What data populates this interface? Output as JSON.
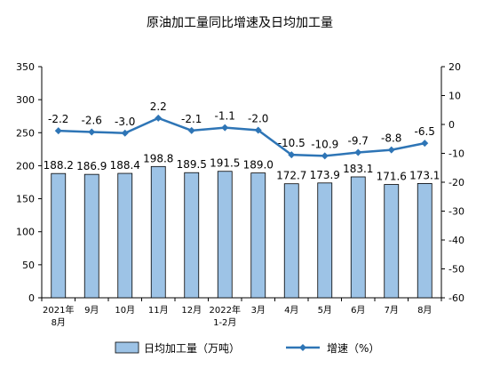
{
  "chart_data": {
    "type": "bar",
    "title": "原油加工量同比增速及日均加工量",
    "categories": [
      [
        "2021年",
        "8月"
      ],
      [
        "9月"
      ],
      [
        "10月"
      ],
      [
        "11月"
      ],
      [
        "12月"
      ],
      [
        "2022年",
        "1-2月"
      ],
      [
        "3月"
      ],
      [
        "4月"
      ],
      [
        "5月"
      ],
      [
        "6月"
      ],
      [
        "7月"
      ],
      [
        "8月"
      ]
    ],
    "series": [
      {
        "name": "日均加工量（万吨）",
        "type": "bar",
        "axis": "left",
        "color": "#9dc3e6",
        "values": [
          188.2,
          186.9,
          188.4,
          198.8,
          189.5,
          191.5,
          189.0,
          172.7,
          173.9,
          183.1,
          171.6,
          173.1
        ],
        "labels": [
          "188.2",
          "186.9",
          "188.4",
          "198.8",
          "189.5",
          "191.5",
          "189.0",
          "172.7",
          "173.9",
          "183.1",
          "171.6",
          "173.1"
        ]
      },
      {
        "name": "增速（%）",
        "type": "line",
        "axis": "right",
        "color": "#2e75b6",
        "values": [
          -2.2,
          -2.6,
          -3.0,
          2.2,
          -2.1,
          -1.1,
          -2.0,
          -10.5,
          -10.9,
          -9.7,
          -8.8,
          -6.5
        ],
        "labels": [
          "-2.2",
          "-2.6",
          "-3.0",
          "2.2",
          "-2.1",
          "-1.1",
          "-2.0",
          "-10.5",
          "-10.9",
          "-9.7",
          "-8.8",
          "-6.5"
        ]
      }
    ],
    "left_axis": {
      "ylim": [
        0,
        350
      ],
      "ticks": [
        "0",
        "50",
        "100",
        "150",
        "200",
        "250",
        "300",
        "350"
      ]
    },
    "right_axis": {
      "ylim": [
        -60,
        20
      ],
      "ticks": [
        "-60",
        "-50",
        "-40",
        "-30",
        "-20",
        "-10",
        "0",
        "10",
        "20"
      ]
    },
    "grid": false,
    "legend_position": "bottom"
  }
}
